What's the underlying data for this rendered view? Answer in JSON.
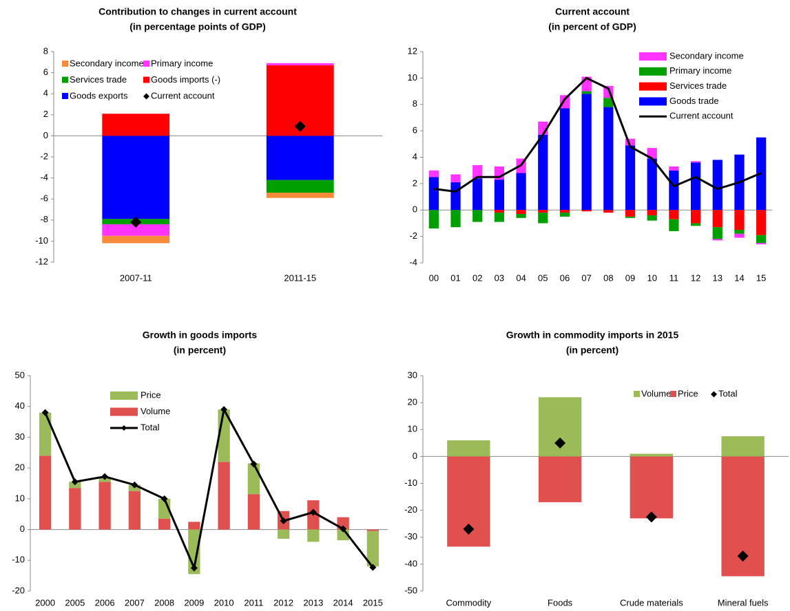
{
  "chart_data": [
    {
      "type": "stacked_bar",
      "title": "Contribution to changes in current account",
      "subtitle": "(in percentage points of GDP)",
      "categories": [
        "2007-11",
        "2011-15"
      ],
      "ylim": [
        -12,
        8
      ],
      "yticks": [
        -12,
        -10,
        -8,
        -6,
        -4,
        -2,
        0,
        2,
        4,
        6,
        8
      ],
      "legend": "upper left",
      "series": [
        {
          "name": "Secondary income",
          "type": "bar",
          "color": "#f68b3a",
          "values": [
            -0.7,
            -0.5
          ]
        },
        {
          "name": "Primary income",
          "type": "bar",
          "color": "#ff33ff",
          "values": [
            -1.1,
            0.2
          ]
        },
        {
          "name": "Services trade",
          "type": "bar",
          "color": "#009f00",
          "values": [
            -0.5,
            -1.2
          ]
        },
        {
          "name": "Goods imports (-)",
          "type": "bar",
          "color": "#ff0000",
          "values": [
            2.1,
            6.7
          ]
        },
        {
          "name": "Goods exports",
          "type": "bar",
          "color": "#0000ff",
          "values": [
            -7.9,
            -4.2
          ]
        },
        {
          "name": "Current account",
          "type": "marker",
          "color": "#000000",
          "values": [
            -8.2,
            0.9
          ]
        }
      ]
    },
    {
      "type": "stacked_bar",
      "title": "Current account",
      "subtitle": "(in percent of GDP)",
      "categories": [
        "00",
        "01",
        "02",
        "03",
        "04",
        "05",
        "06",
        "07",
        "08",
        "09",
        "10",
        "11",
        "12",
        "13",
        "14",
        "15"
      ],
      "ylim": [
        -4,
        12
      ],
      "yticks": [
        -4,
        -2,
        0,
        2,
        4,
        6,
        8,
        10,
        12
      ],
      "legend": "upper right",
      "series": [
        {
          "name": "Secondary income",
          "type": "bar",
          "color": "#ff33ff",
          "values": [
            0.5,
            0.6,
            1.0,
            1.0,
            1.1,
            1.0,
            1.0,
            1.1,
            0.9,
            0.5,
            0.8,
            0.3,
            0.1,
            -0.1,
            -0.3,
            -0.1
          ]
        },
        {
          "name": "Primary income",
          "type": "bar",
          "color": "#009f00",
          "values": [
            -1.4,
            -1.3,
            -0.9,
            -0.7,
            -0.3,
            -0.8,
            -0.3,
            0.2,
            0.7,
            -0.1,
            -0.4,
            -0.9,
            -0.2,
            -0.9,
            -0.3,
            -0.6
          ]
        },
        {
          "name": "Services trade",
          "type": "bar",
          "color": "#ff0000",
          "values": [
            0,
            0,
            0,
            -0.2,
            -0.3,
            -0.2,
            -0.2,
            -0.1,
            -0.2,
            -0.5,
            -0.4,
            -0.7,
            -1.0,
            -1.3,
            -1.5,
            -1.9
          ]
        },
        {
          "name": "Goods trade",
          "type": "bar",
          "color": "#0000ff",
          "values": [
            2.5,
            2.1,
            2.4,
            2.3,
            2.8,
            5.7,
            7.7,
            8.8,
            7.8,
            4.9,
            3.9,
            3.0,
            3.6,
            3.8,
            4.2,
            5.5
          ]
        },
        {
          "name": "Current account",
          "type": "line",
          "color": "#000000",
          "values": [
            1.6,
            1.4,
            2.5,
            2.5,
            3.4,
            5.7,
            8.4,
            10.0,
            9.2,
            4.8,
            3.9,
            1.8,
            2.5,
            1.6,
            2.1,
            2.8
          ]
        }
      ]
    },
    {
      "type": "stacked_bar",
      "title": "Growth in goods imports",
      "subtitle": "(in percent)",
      "categories": [
        "2000",
        "2005",
        "2006",
        "2007",
        "2008",
        "2009",
        "2010",
        "2011",
        "2012",
        "2013",
        "2014",
        "2015"
      ],
      "ylim": [
        -20,
        50
      ],
      "yticks": [
        -20,
        -10,
        0,
        10,
        20,
        30,
        40,
        50
      ],
      "legend": "upper left",
      "series": [
        {
          "name": "Price",
          "type": "bar",
          "color": "#9bbb59",
          "values": [
            14,
            2,
            1.5,
            2,
            6.5,
            -14.5,
            17,
            10,
            -3,
            -4,
            -3.5,
            -11.5
          ]
        },
        {
          "name": "Volume",
          "type": "bar",
          "color": "#e0504e",
          "values": [
            24,
            13.5,
            15.5,
            12.5,
            3.5,
            2.5,
            22,
            11.5,
            6,
            9.5,
            4,
            -0.5
          ]
        },
        {
          "name": "Total",
          "type": "line-marker",
          "color": "#000000",
          "values": [
            38,
            15.5,
            17.2,
            14.5,
            10,
            -12.5,
            39,
            21.3,
            2.8,
            5.6,
            0.2,
            -12.3
          ]
        }
      ]
    },
    {
      "type": "stacked_bar",
      "title": "Growth in commodity imports in 2015",
      "subtitle": "(in percent)",
      "categories": [
        "Commodity",
        "Foods",
        "Crude materials",
        "Mineral fuels"
      ],
      "ylim": [
        -50,
        30
      ],
      "yticks": [
        -50,
        -40,
        -30,
        -20,
        -10,
        0,
        10,
        20,
        30
      ],
      "legend": "upper right",
      "series": [
        {
          "name": "Volume",
          "type": "bar",
          "color": "#9bbb59",
          "values": [
            6,
            22,
            1,
            7.5
          ]
        },
        {
          "name": "Price",
          "type": "bar",
          "color": "#e0504e",
          "values": [
            -33.5,
            -17,
            -23,
            -44.5
          ]
        },
        {
          "name": "Total",
          "type": "marker",
          "color": "#000000",
          "values": [
            -27,
            5,
            -22.5,
            -37
          ]
        }
      ]
    }
  ]
}
